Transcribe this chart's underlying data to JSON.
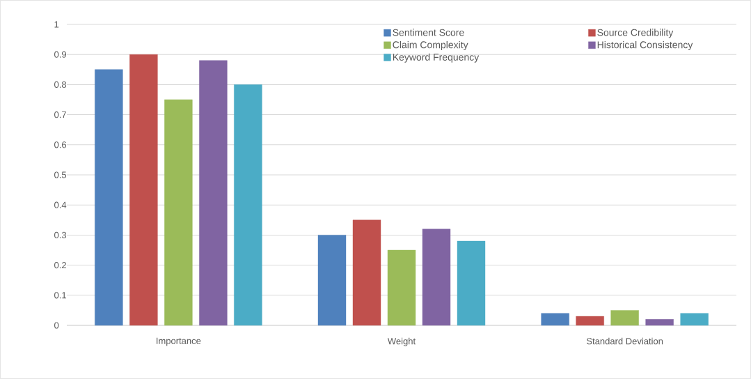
{
  "chart_data": {
    "type": "bar",
    "categories": [
      "Importance",
      "Weight",
      "Standard Deviation"
    ],
    "series": [
      {
        "name": "Sentiment Score",
        "color": "#4f81bd",
        "values": [
          0.85,
          0.3,
          0.04
        ]
      },
      {
        "name": "Source Credibility",
        "color": "#c0504d",
        "values": [
          0.9,
          0.35,
          0.03
        ]
      },
      {
        "name": "Claim Complexity",
        "color": "#9bbb59",
        "values": [
          0.75,
          0.25,
          0.05
        ]
      },
      {
        "name": "Historical Consistency",
        "color": "#8064a2",
        "values": [
          0.88,
          0.32,
          0.02
        ]
      },
      {
        "name": "Keyword Frequency",
        "color": "#4bacc6",
        "values": [
          0.8,
          0.28,
          0.04
        ]
      }
    ],
    "ylim": [
      0,
      1
    ],
    "yticks": [
      0,
      0.1,
      0.2,
      0.3,
      0.4,
      0.5,
      0.6,
      0.7,
      0.8,
      0.9,
      1
    ],
    "grid": "y",
    "legend": "top right"
  }
}
